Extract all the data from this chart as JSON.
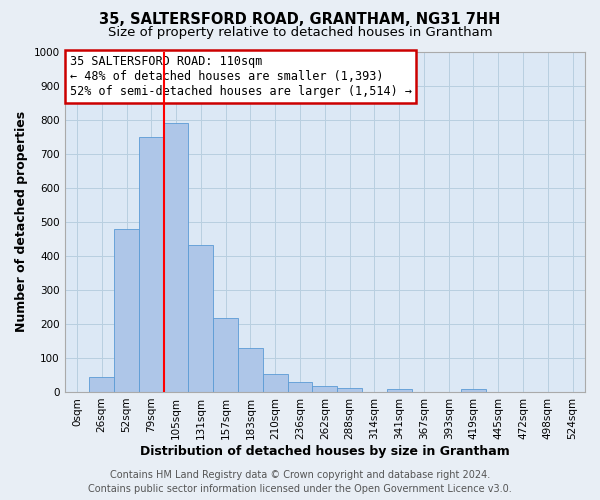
{
  "title": "35, SALTERSFORD ROAD, GRANTHAM, NG31 7HH",
  "subtitle": "Size of property relative to detached houses in Grantham",
  "xlabel": "Distribution of detached houses by size in Grantham",
  "ylabel": "Number of detached properties",
  "bar_labels": [
    "0sqm",
    "26sqm",
    "52sqm",
    "79sqm",
    "105sqm",
    "131sqm",
    "157sqm",
    "183sqm",
    "210sqm",
    "236sqm",
    "262sqm",
    "288sqm",
    "314sqm",
    "341sqm",
    "367sqm",
    "393sqm",
    "419sqm",
    "445sqm",
    "472sqm",
    "498sqm",
    "524sqm"
  ],
  "bar_values": [
    0,
    45,
    480,
    750,
    790,
    432,
    218,
    128,
    52,
    30,
    18,
    11,
    0,
    9,
    0,
    0,
    10,
    0,
    0,
    0,
    0
  ],
  "bar_color": "#aec6e8",
  "bar_edge_color": "#5b9bd5",
  "vline_x": 3.5,
  "vline_color": "red",
  "ylim": [
    0,
    1000
  ],
  "yticks": [
    0,
    100,
    200,
    300,
    400,
    500,
    600,
    700,
    800,
    900,
    1000
  ],
  "annotation_line1": "35 SALTERSFORD ROAD: 110sqm",
  "annotation_line2": "← 48% of detached houses are smaller (1,393)",
  "annotation_line3": "52% of semi-detached houses are larger (1,514) →",
  "annotation_box_color": "white",
  "annotation_box_edge_color": "#cc0000",
  "footer_line1": "Contains HM Land Registry data © Crown copyright and database right 2024.",
  "footer_line2": "Contains public sector information licensed under the Open Government Licence v3.0.",
  "bg_color": "#e8eef5",
  "plot_bg_color": "#dce8f5",
  "grid_color": "#b8cfe0",
  "title_fontsize": 10.5,
  "subtitle_fontsize": 9.5,
  "axis_label_fontsize": 9,
  "tick_fontsize": 7.5,
  "footer_fontsize": 7,
  "annotation_fontsize": 8.5
}
